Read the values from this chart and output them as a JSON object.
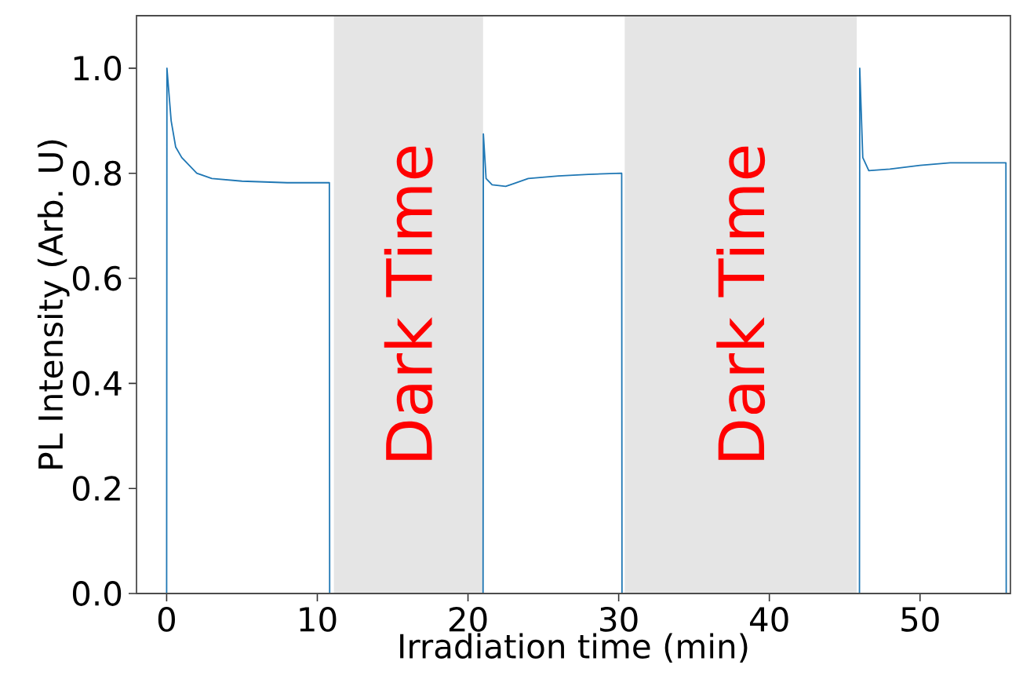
{
  "chart_data": {
    "type": "line",
    "xlabel": "Irradiation time (min)",
    "ylabel": "PL Intensity (Arb. U)",
    "x": [
      0,
      0.02,
      0.3,
      0.6,
      1,
      1.5,
      2,
      3,
      5,
      8,
      10.8,
      10.82,
      15,
      21.0,
      21.02,
      21.2,
      21.6,
      22.5,
      23,
      24,
      26,
      28,
      30.2,
      30.22,
      38,
      45.98,
      46.0,
      46.2,
      46.6,
      48,
      50,
      52,
      55.7,
      55.72
    ],
    "values": [
      0,
      1.0,
      0.9,
      0.85,
      0.83,
      0.815,
      0.8,
      0.79,
      0.785,
      0.782,
      0.782,
      0,
      null,
      0,
      0.875,
      0.79,
      0.778,
      0.775,
      0.78,
      0.79,
      0.795,
      0.798,
      0.8,
      0,
      null,
      0,
      1.0,
      0.83,
      0.805,
      0.808,
      0.815,
      0.82,
      0.82,
      0
    ],
    "color": "#1f77b4",
    "xlim": [
      -2,
      56
    ],
    "ylim": [
      0,
      1.1
    ],
    "xticks": [
      0,
      10,
      20,
      30,
      40,
      50
    ],
    "yticks": [
      {
        "value": 0,
        "label": "0.0"
      },
      0.2,
      0.4,
      0.6,
      0.8,
      {
        "value": 1,
        "label": "1.0"
      }
    ],
    "bands": [
      {
        "axis": "x",
        "from": 11.1,
        "to": 21.0,
        "label": "Dark Time",
        "color": "#e5e5e5"
      },
      {
        "axis": "x",
        "from": 30.4,
        "to": 45.8,
        "label": "Dark Time",
        "color": "#e5e5e5"
      }
    ]
  }
}
